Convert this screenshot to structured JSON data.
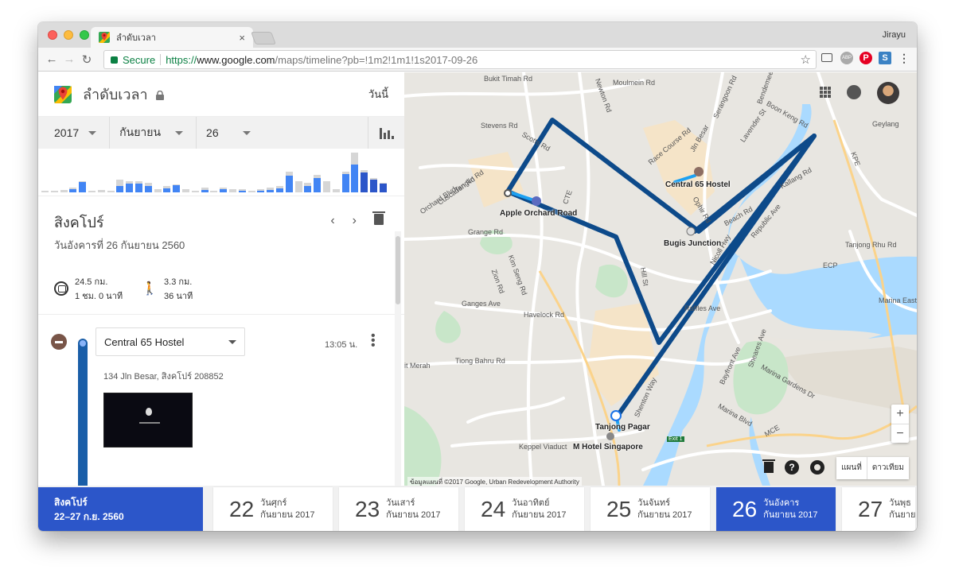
{
  "browser": {
    "tab_title": "ลำดับเวลา",
    "tab_close": "×",
    "profile_name": "Jirayu",
    "secure_label": "Secure",
    "url_scheme": "https://",
    "url_host": "www.google.com",
    "url_path": "/maps/timeline?pb=!1m2!1m1!1s2017-09-26",
    "nav": {
      "back": "←",
      "forward": "→",
      "reload": "↻"
    },
    "star": "☆",
    "extensions": [
      "cast-icon",
      "adblock-icon",
      "pinterest-icon",
      "save-icon",
      "menu-icon"
    ]
  },
  "panel": {
    "title": "ลำดับเวลา",
    "today_label": "วันนี้",
    "year": "2017",
    "month": "กันยายน",
    "day": "26",
    "place_name": "สิงคโปร์",
    "place_date": "วันอังคารที่ 26 กันยายน 2560",
    "transit_distance": "24.5 กม.",
    "transit_duration": "1 ชม. 0 นาที",
    "walk_distance": "3.3 กม.",
    "walk_duration": "36 นาที",
    "visit": {
      "name": "Central 65 Hostel",
      "time": "13:05 น.",
      "address": "134 Jln Besar, สิงคโปร์ 208852"
    }
  },
  "map": {
    "roads": [
      "Bukit Timah Rd",
      "Newton Rd",
      "Moulmein Rd",
      "Serangoon Rd",
      "Bendemeer Rd",
      "Boon Keng Rd",
      "Geylang",
      "Stevens Rd",
      "Scotts Rd",
      "Race Course Rd",
      "Jln Besar",
      "Lavender St",
      "Kallang Rd",
      "Tanglin Rd",
      "Cuscaden Rd",
      "Orchard Blvd",
      "Grange Rd",
      "KPE",
      "Ophir Rd",
      "Beach Rd",
      "Nicoll Hwy",
      "Republic Ave",
      "Tanjong Rhu Rd",
      "ECP",
      "Kim Seng Rd",
      "Zion Rd",
      "Ganges Ave",
      "Havelock Rd",
      "CTE",
      "Hill St",
      "Raffles Ave",
      "Tiong Bahru Rd",
      "it Merah",
      "Bayfront Ave",
      "Sheares Ave",
      "Marina Gardens Dr",
      "Marina Blvd",
      "MCE",
      "Marina East",
      "Shenton Way",
      "Keppel Viaduct",
      "Exit 1"
    ],
    "route_expressways": [
      "KPE",
      "ECP",
      "MCE",
      "CTE"
    ],
    "pois": {
      "hostel": "Central 65 Hostel",
      "orchard": "Apple Orchard Road",
      "bugis": "Bugis Junction",
      "tanjong": "Tanjong Pagar",
      "mhotel": "M Hotel Singapore"
    },
    "attribution": "ข้อมูลแผนที่ ©2017 Google, Urban Redevelopment Authority",
    "zoom_in": "+",
    "zoom_out": "−",
    "help": "?",
    "map_type_map": "แผนที่",
    "map_type_satellite": "ดาวเทียม",
    "colors": {
      "route": "#0d4a8a",
      "walk": "#1da1f2",
      "water": "#aadaff",
      "park": "#c8e6c9"
    }
  },
  "datestrip": {
    "trip_title": "สิงคโปร์",
    "trip_range": "22–27 ก.ย. 2560",
    "days": [
      {
        "num": "22",
        "weekday": "วันศุกร์",
        "monthyear": "กันยายน 2017"
      },
      {
        "num": "23",
        "weekday": "วันเสาร์",
        "monthyear": "กันยายน 2017"
      },
      {
        "num": "24",
        "weekday": "วันอาทิตย์",
        "monthyear": "กันยายน 2017"
      },
      {
        "num": "25",
        "weekday": "วันจันทร์",
        "monthyear": "กันยายน 2017"
      },
      {
        "num": "26",
        "weekday": "วันอังคาร",
        "monthyear": "กันยายน 2017",
        "active": true
      },
      {
        "num": "27",
        "weekday": "วันพุธ",
        "monthyear": "กันยายน"
      }
    ]
  }
}
